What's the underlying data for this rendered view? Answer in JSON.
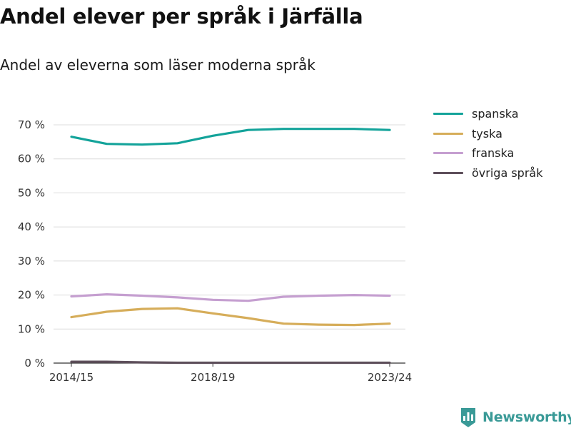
{
  "title": "Andel elever per språk i Järfälla",
  "subtitle": "Andel av eleverna som läser moderna språk",
  "brand": {
    "name": "Newsworthy",
    "icon": "bar-chart-badge-icon",
    "color": "#3a9a97"
  },
  "chart_data": {
    "type": "line",
    "x": [
      "2014/15",
      "2015/16",
      "2016/17",
      "2017/18",
      "2018/19",
      "2019/20",
      "2020/21",
      "2021/22",
      "2022/23",
      "2023/24"
    ],
    "x_tick_labels": [
      "2014/15",
      "2018/19",
      "2023/24"
    ],
    "y_ticks": [
      0,
      10,
      20,
      30,
      40,
      50,
      60,
      70
    ],
    "y_tick_labels": [
      "0 %",
      "10 %",
      "20 %",
      "30 %",
      "40 %",
      "50 %",
      "60 %",
      "70 %"
    ],
    "ylim": [
      0,
      70
    ],
    "grid": true,
    "legend_position": "right",
    "series": [
      {
        "name": "spanska",
        "color": "#13a39a",
        "values": [
          66.5,
          64.4,
          64.2,
          64.6,
          66.8,
          68.5,
          68.8,
          68.8,
          68.8,
          68.5
        ]
      },
      {
        "name": "tyska",
        "color": "#d6ad5a",
        "values": [
          13.5,
          15.1,
          15.9,
          16.1,
          14.6,
          13.2,
          11.6,
          11.3,
          11.2,
          11.6
        ]
      },
      {
        "name": "franska",
        "color": "#c59fd0",
        "values": [
          19.6,
          20.2,
          19.8,
          19.3,
          18.6,
          18.3,
          19.5,
          19.8,
          20.0,
          19.8
        ]
      },
      {
        "name": "övriga språk",
        "color": "#5e4f5b",
        "values": [
          0.4,
          0.4,
          0.2,
          0.1,
          0.1,
          0.1,
          0.1,
          0.1,
          0.1,
          0.1
        ]
      }
    ]
  }
}
